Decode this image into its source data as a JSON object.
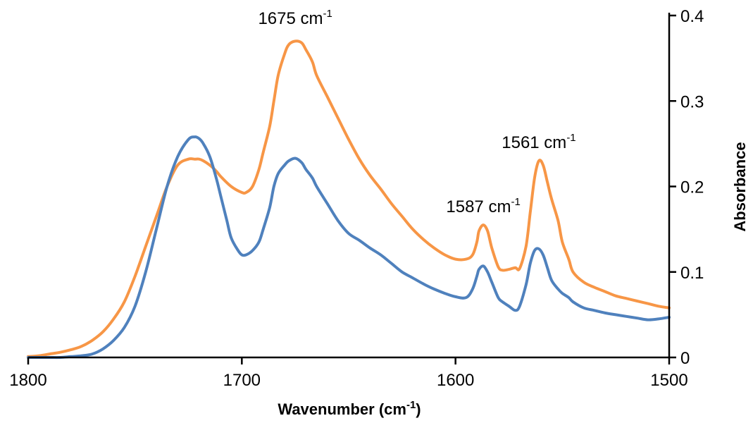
{
  "chart_data": {
    "type": "line",
    "title": "",
    "xlabel": "Wavenumber (cm",
    "xlabel_sup": "-1",
    "xlabel_close": ")",
    "ylabel": "Absorbance",
    "xlim": [
      1800,
      1500
    ],
    "x_reversed": true,
    "ylim": [
      0,
      0.4
    ],
    "x_ticks": [
      1800,
      1700,
      1600,
      1500
    ],
    "x_tick_labels": [
      "1800",
      "1700",
      "1600",
      "1500"
    ],
    "y_ticks": [
      0,
      0.1,
      0.2,
      0.3,
      0.4
    ],
    "y_tick_labels": [
      "0",
      "0.1",
      "0.2",
      "0.3",
      "0.4"
    ],
    "y_axis_side": "right",
    "grid": false,
    "legend": "none",
    "annotations": [
      {
        "text": "1675 cm",
        "sup": "-1",
        "x": 1675,
        "y": 0.39
      },
      {
        "text": "1587 cm",
        "sup": "-1",
        "x": 1587,
        "y": 0.17
      },
      {
        "text": "1561 cm",
        "sup": "-1",
        "x": 1561,
        "y": 0.245
      }
    ],
    "series": [
      {
        "color": "#F79646",
        "x": [
          1800,
          1795,
          1790,
          1785,
          1780,
          1775,
          1770,
          1765,
          1760,
          1755,
          1750,
          1745,
          1740,
          1735,
          1730,
          1725,
          1722,
          1720,
          1718,
          1715,
          1712,
          1710,
          1705,
          1700,
          1698,
          1695,
          1692,
          1690,
          1687,
          1685,
          1683,
          1680,
          1678,
          1675,
          1672,
          1670,
          1667,
          1665,
          1660,
          1655,
          1650,
          1645,
          1640,
          1635,
          1630,
          1625,
          1620,
          1615,
          1610,
          1605,
          1600,
          1595,
          1592,
          1590,
          1589,
          1587,
          1585,
          1583,
          1580,
          1578,
          1575,
          1572,
          1570,
          1567,
          1565,
          1563,
          1561,
          1559,
          1557,
          1555,
          1552,
          1550,
          1547,
          1545,
          1540,
          1535,
          1530,
          1525,
          1520,
          1515,
          1510,
          1505,
          1500
        ],
        "y": [
          0.001,
          0.002,
          0.004,
          0.006,
          0.009,
          0.013,
          0.02,
          0.03,
          0.045,
          0.065,
          0.095,
          0.13,
          0.165,
          0.2,
          0.225,
          0.232,
          0.232,
          0.232,
          0.23,
          0.225,
          0.218,
          0.212,
          0.2,
          0.193,
          0.193,
          0.2,
          0.22,
          0.24,
          0.27,
          0.3,
          0.33,
          0.355,
          0.366,
          0.37,
          0.368,
          0.36,
          0.346,
          0.33,
          0.305,
          0.28,
          0.255,
          0.232,
          0.213,
          0.197,
          0.18,
          0.165,
          0.15,
          0.138,
          0.128,
          0.12,
          0.115,
          0.115,
          0.12,
          0.135,
          0.148,
          0.155,
          0.148,
          0.128,
          0.106,
          0.102,
          0.103,
          0.105,
          0.104,
          0.13,
          0.17,
          0.21,
          0.23,
          0.225,
          0.205,
          0.185,
          0.16,
          0.135,
          0.115,
          0.1,
          0.088,
          0.082,
          0.077,
          0.072,
          0.069,
          0.066,
          0.063,
          0.06,
          0.058
        ]
      },
      {
        "color": "#4F81BD",
        "x": [
          1800,
          1795,
          1790,
          1785,
          1780,
          1775,
          1770,
          1765,
          1760,
          1755,
          1750,
          1745,
          1740,
          1735,
          1730,
          1725,
          1722,
          1720,
          1718,
          1715,
          1712,
          1710,
          1707,
          1705,
          1702,
          1700,
          1698,
          1695,
          1692,
          1690,
          1687,
          1685,
          1683,
          1680,
          1678,
          1675,
          1672,
          1670,
          1667,
          1665,
          1660,
          1655,
          1650,
          1645,
          1640,
          1635,
          1630,
          1625,
          1620,
          1615,
          1610,
          1605,
          1600,
          1595,
          1592,
          1590,
          1589,
          1587,
          1585,
          1583,
          1580,
          1578,
          1575,
          1572,
          1570,
          1567,
          1565,
          1563,
          1561,
          1559,
          1557,
          1555,
          1552,
          1550,
          1547,
          1545,
          1540,
          1535,
          1530,
          1525,
          1520,
          1515,
          1510,
          1505,
          1500
        ],
        "y": [
          0.0,
          0.0,
          0.0,
          0.0,
          0.001,
          0.002,
          0.004,
          0.01,
          0.02,
          0.035,
          0.06,
          0.1,
          0.15,
          0.2,
          0.235,
          0.255,
          0.258,
          0.256,
          0.25,
          0.235,
          0.21,
          0.19,
          0.16,
          0.14,
          0.126,
          0.12,
          0.12,
          0.125,
          0.135,
          0.15,
          0.175,
          0.2,
          0.215,
          0.225,
          0.23,
          0.233,
          0.228,
          0.22,
          0.21,
          0.2,
          0.18,
          0.16,
          0.145,
          0.137,
          0.128,
          0.12,
          0.11,
          0.1,
          0.093,
          0.086,
          0.08,
          0.075,
          0.071,
          0.07,
          0.08,
          0.095,
          0.103,
          0.107,
          0.1,
          0.088,
          0.07,
          0.065,
          0.06,
          0.055,
          0.06,
          0.085,
          0.11,
          0.125,
          0.127,
          0.12,
          0.105,
          0.09,
          0.08,
          0.075,
          0.07,
          0.065,
          0.058,
          0.055,
          0.052,
          0.05,
          0.048,
          0.046,
          0.044,
          0.045,
          0.047
        ]
      }
    ]
  }
}
